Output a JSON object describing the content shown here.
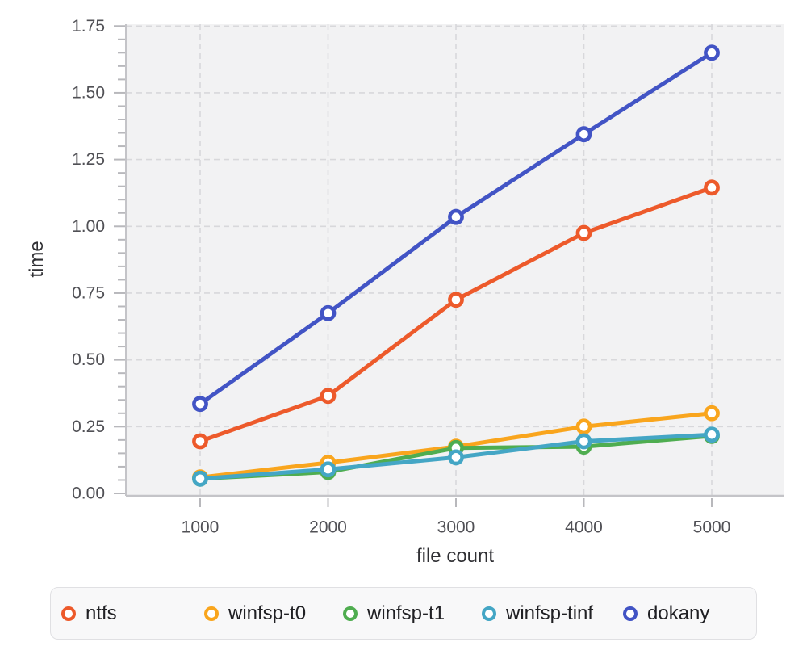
{
  "chart_data": {
    "type": "line",
    "title": "",
    "xlabel": "file count",
    "ylabel": "time",
    "x": [
      1000,
      2000,
      3000,
      4000,
      5000
    ],
    "x_tick_labels": [
      "1000",
      "2000",
      "3000",
      "4000",
      "5000"
    ],
    "y_ticks": [
      0.0,
      0.25,
      0.5,
      0.75,
      1.0,
      1.25,
      1.5,
      1.75
    ],
    "y_tick_labels": [
      "0.00",
      "0.25",
      "0.50",
      "0.75",
      "1.00",
      "1.25",
      "1.50",
      "1.75"
    ],
    "ylim": [
      0,
      1.75
    ],
    "y_minor_tick_step": 0.05,
    "grid": "dashed",
    "legend_position": "bottom",
    "marker_style": "open-circle-white-fill",
    "series": [
      {
        "name": "ntfs",
        "color": "#ed5a2b",
        "values": [
          0.195,
          0.365,
          0.725,
          0.975,
          1.145
        ]
      },
      {
        "name": "winfsp-t0",
        "color": "#f9a51d",
        "values": [
          0.06,
          0.115,
          0.175,
          0.25,
          0.3
        ]
      },
      {
        "name": "winfsp-t1",
        "color": "#4fad50",
        "values": [
          0.055,
          0.08,
          0.17,
          0.175,
          0.215
        ]
      },
      {
        "name": "winfsp-tinf",
        "color": "#44a6c5",
        "values": [
          0.055,
          0.09,
          0.135,
          0.195,
          0.22
        ]
      },
      {
        "name": "dokany",
        "color": "#4254c5",
        "values": [
          0.335,
          0.675,
          1.035,
          1.345,
          1.65
        ]
      }
    ],
    "colors": {
      "plot_background": "#f2f2f3",
      "grid_line": "#d8d8db",
      "axis_line": "#c4c4c8",
      "tick_mark": "#b8b8bc",
      "tick_label": "#505055",
      "axis_title": "#2f2f33",
      "legend_background": "#f8f8f9",
      "legend_border": "#e0e0e3",
      "legend_text": "#202024"
    }
  }
}
